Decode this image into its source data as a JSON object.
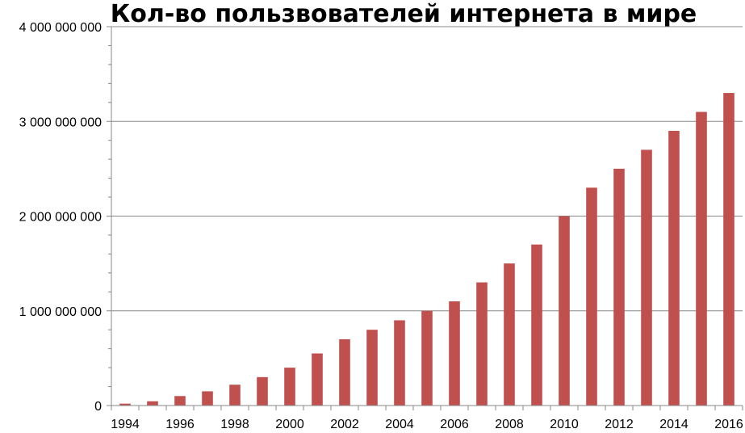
{
  "chart_data": {
    "type": "bar",
    "title": "Кол-во пользвователей интернета в мире",
    "xlabel": "",
    "ylabel": "",
    "x": [
      1994,
      1995,
      1996,
      1997,
      1998,
      1999,
      2000,
      2001,
      2002,
      2003,
      2004,
      2005,
      2006,
      2007,
      2008,
      2009,
      2010,
      2011,
      2012,
      2013,
      2014,
      2015,
      2016
    ],
    "values": [
      20000000,
      45000000,
      100000000,
      150000000,
      220000000,
      300000000,
      400000000,
      550000000,
      700000000,
      800000000,
      900000000,
      1000000000,
      1100000000,
      1300000000,
      1500000000,
      1700000000,
      2000000000,
      2300000000,
      2500000000,
      2700000000,
      2900000000,
      3100000000,
      3300000000
    ],
    "x_tick_labels": [
      "1994",
      "1996",
      "1998",
      "2000",
      "2002",
      "2004",
      "2006",
      "2008",
      "2010",
      "2012",
      "2014",
      "2016"
    ],
    "y_tick_labels": [
      "0",
      "1 000 000 000",
      "2 000 000 000",
      "3 000 000 000",
      "4 000 000 000"
    ],
    "ylim": [
      0,
      4000000000
    ],
    "y_major_step": 1000000000,
    "y_minor_step": 200000000,
    "grid": "horizontal major",
    "legend": "none",
    "bar_color": "#c0504d",
    "gridline_color": "#888888"
  }
}
